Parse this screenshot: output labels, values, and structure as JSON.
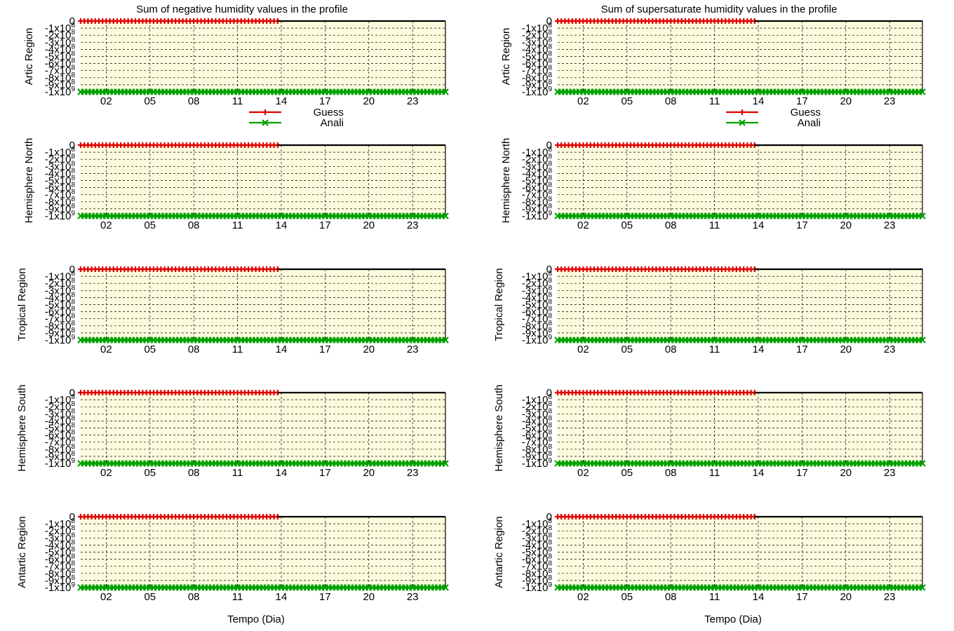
{
  "figure": {
    "legend_labels": [
      "Guess",
      "Anali"
    ]
  },
  "chart_data": [
    {
      "type": "line",
      "title": "Sum of negative humidity values in the     profile",
      "xlabel": "Tempo (Dia)",
      "x_tick_labels": [
        "02",
        "05",
        "08",
        "11",
        "14",
        "17",
        "20",
        "23"
      ],
      "y_tick_labels": [
        "0",
        "-1x10^8",
        "-2x10^8",
        "-3x10^8",
        "-4x10^8",
        "-5x10^8",
        "-6x10^8",
        "-7x10^8",
        "-8x10^8",
        "-9x10^8",
        "-1x10^9"
      ],
      "xlim": [
        0.25,
        25.25
      ],
      "ylim": [
        -1000000000,
        0
      ],
      "panels": [
        {
          "ylabel": "Artic Region",
          "show_legend": true
        },
        {
          "ylabel": "Hemisphere North",
          "show_legend": false
        },
        {
          "ylabel": "Tropical Region",
          "show_legend": false
        },
        {
          "ylabel": "Hemisphere South",
          "show_legend": false
        },
        {
          "ylabel": "Antartic Region",
          "show_legend": false
        }
      ],
      "series": [
        {
          "name": "Guess",
          "color": "#e00000",
          "marker": "plus",
          "x_start": 0.25,
          "x_end": 13.75,
          "x_step": 0.25,
          "value": 0
        },
        {
          "name": "Anali",
          "color": "#00a000",
          "marker": "cross",
          "x_start": 0.25,
          "x_end": 25.25,
          "x_step": 0.25,
          "value": -1000000000
        }
      ]
    },
    {
      "type": "line",
      "title": "Sum of supersaturate humidity values in the profile",
      "xlabel": "Tempo (Dia)",
      "x_tick_labels": [
        "02",
        "05",
        "08",
        "11",
        "14",
        "17",
        "20",
        "23"
      ],
      "y_tick_labels": [
        "0",
        "-1x10^8",
        "-2x10^8",
        "-3x10^8",
        "-4x10^8",
        "-5x10^8",
        "-6x10^8",
        "-7x10^8",
        "-8x10^8",
        "-9x10^8",
        "-1x10^9"
      ],
      "xlim": [
        0.25,
        25.25
      ],
      "ylim": [
        -1000000000,
        0
      ],
      "panels": [
        {
          "ylabel": "Artic Region",
          "show_legend": true
        },
        {
          "ylabel": "Hemisphere North",
          "show_legend": false
        },
        {
          "ylabel": "Tropical Region",
          "show_legend": false
        },
        {
          "ylabel": "Hemisphere South",
          "show_legend": false
        },
        {
          "ylabel": "Antartic Region",
          "show_legend": false
        }
      ],
      "series": [
        {
          "name": "Guess",
          "color": "#e00000",
          "marker": "plus",
          "x_start": 0.25,
          "x_end": 13.75,
          "x_step": 0.25,
          "value": 0
        },
        {
          "name": "Anali",
          "color": "#00a000",
          "marker": "cross",
          "x_start": 0.25,
          "x_end": 25.25,
          "x_step": 0.25,
          "value": -1000000000
        }
      ]
    }
  ]
}
